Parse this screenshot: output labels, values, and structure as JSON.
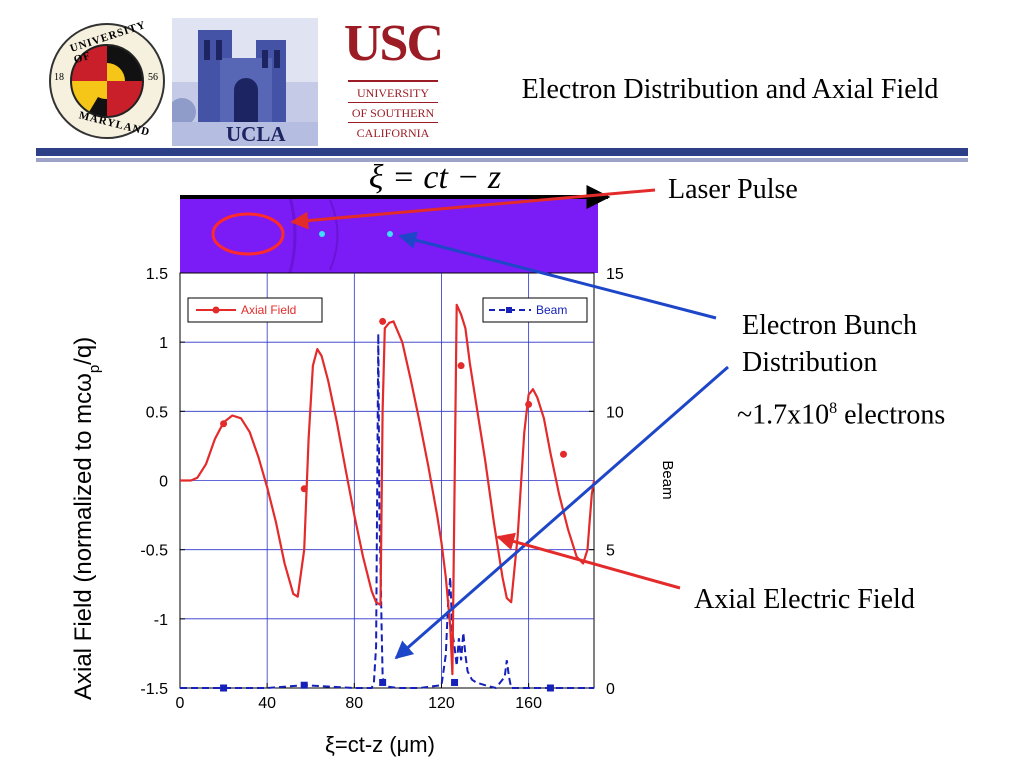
{
  "slide": {
    "title": "Electron Distribution and Axial Field"
  },
  "logos": {
    "umd_top": "UNIVERSITY OF",
    "umd_bottom": "MARYLAND",
    "umd_left": "18",
    "umd_right": "56",
    "ucla": "UCLA",
    "usc": "USC",
    "usc_line1": "UNIVERSITY",
    "usc_line2": "OF SOUTHERN",
    "usc_line3": "CALIFORNIA"
  },
  "annotations": {
    "xi_equation": "ξ = ct − z",
    "laser_pulse": "Laser Pulse",
    "electron_bunch_1": "Electron Bunch",
    "electron_bunch_2": "Distribution",
    "electron_count_pre": "~1.7x10",
    "electron_count_exp": "8",
    "electron_count_post": " electrons",
    "axial_electric_field": "Axial Electric Field"
  },
  "colors": {
    "field": "#e32b2b",
    "beam": "#1521b8",
    "grid": "#2a33c9",
    "inset_bg": "#7b1bf5",
    "arrow_red": "#e32b2b",
    "arrow_blue": "#1e46c8"
  },
  "chart_data": {
    "type": "line",
    "xlabel": "ξ=ct-z (μm)",
    "ylabel_left": "Axial Field (normalized to mcω",
    "ylabel_sub": "p",
    "ylabel_tail": "/q)",
    "ylabel_right": "Beam",
    "xlim": [
      0,
      190
    ],
    "ylim_left": [
      -1.5,
      1.5
    ],
    "ylim_right": [
      0,
      15
    ],
    "xticks": [
      "0",
      "40",
      "80",
      "120",
      "160"
    ],
    "xtick_values": [
      0,
      40,
      80,
      120,
      160
    ],
    "yticks_left": [
      "-1.5",
      "-1",
      "-0.5",
      "0",
      "0.5",
      "1",
      "1.5"
    ],
    "ytick_values_left": [
      -1.5,
      -1,
      -0.5,
      0,
      0.5,
      1,
      1.5
    ],
    "yticks_right": [
      "0",
      "5",
      "10",
      "15"
    ],
    "ytick_values_right": [
      0,
      5,
      10,
      15
    ],
    "grid": true,
    "series": [
      {
        "name": "Axial Field",
        "axis": "left",
        "style": "solid",
        "marker": "circle",
        "x": [
          0,
          5,
          8,
          12,
          16,
          20,
          24,
          28,
          32,
          36,
          40,
          44,
          48,
          52,
          54,
          57,
          59,
          61,
          63,
          65,
          68,
          72,
          76,
          80,
          84,
          88,
          90,
          92,
          93,
          94,
          96,
          98,
          102,
          106,
          110,
          114,
          118,
          120,
          122,
          124,
          125,
          127,
          129,
          131,
          133,
          136,
          140,
          144,
          148,
          150,
          152,
          155,
          158,
          160,
          162,
          164,
          167,
          170,
          174,
          178,
          182,
          185,
          187,
          188,
          189,
          190
        ],
        "y": [
          0,
          0,
          0.02,
          0.12,
          0.3,
          0.42,
          0.47,
          0.45,
          0.35,
          0.17,
          -0.05,
          -0.3,
          -0.6,
          -0.82,
          -0.84,
          -0.5,
          0.3,
          0.83,
          0.95,
          0.9,
          0.72,
          0.42,
          0.08,
          -0.25,
          -0.55,
          -0.8,
          -0.88,
          -0.9,
          0.5,
          1.1,
          1.14,
          1.15,
          1.0,
          0.72,
          0.42,
          0.1,
          -0.25,
          -0.45,
          -0.7,
          -1.05,
          -1.4,
          1.27,
          1.2,
          1.1,
          0.85,
          0.55,
          0.15,
          -0.3,
          -0.7,
          -0.85,
          -0.88,
          -0.4,
          0.35,
          0.62,
          0.66,
          0.6,
          0.45,
          0.2,
          -0.1,
          -0.35,
          -0.55,
          -0.6,
          -0.5,
          -0.3,
          -0.1,
          0
        ],
        "marker_x": [
          20,
          57,
          93,
          129,
          160,
          176
        ],
        "marker_y": [
          0.41,
          -0.06,
          1.15,
          0.83,
          0.55,
          0.19
        ]
      },
      {
        "name": "Beam",
        "axis": "right",
        "style": "dashed",
        "marker": "square",
        "x": [
          0,
          20,
          40,
          57,
          80,
          88,
          89,
          90,
          91,
          91.5,
          92,
          92.5,
          93,
          93.5,
          94,
          95,
          100,
          110,
          120,
          122,
          123,
          124,
          125,
          126,
          127,
          128,
          129,
          130,
          131,
          132,
          134,
          136,
          140,
          145,
          149,
          150,
          151,
          152,
          156,
          160,
          170,
          180,
          190
        ],
        "y": [
          0,
          0,
          0,
          0.1,
          0,
          0,
          0.2,
          1.5,
          12.8,
          6.2,
          4.5,
          2.2,
          0.5,
          0.2,
          0.1,
          0.05,
          0,
          0,
          0.1,
          1.2,
          3.0,
          4.0,
          2.0,
          1.5,
          0.8,
          1.8,
          1.0,
          2.0,
          1.2,
          0.6,
          0.3,
          0.2,
          0.1,
          0,
          0.4,
          1.0,
          0.4,
          0,
          0,
          0,
          0,
          0,
          0
        ],
        "marker_x": [
          20,
          57,
          93,
          126,
          170
        ],
        "marker_y": [
          0,
          0.1,
          0.2,
          0.2,
          0
        ]
      }
    ],
    "legend_left_label": "Axial Field",
    "legend_right_label": "Beam"
  }
}
